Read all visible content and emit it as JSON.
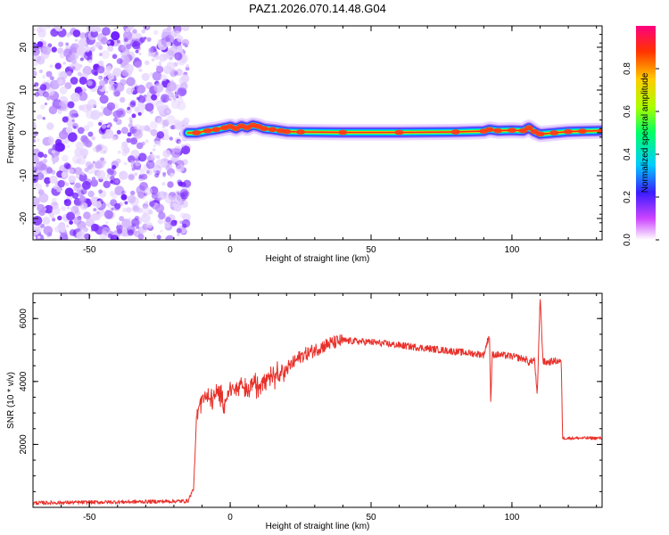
{
  "title": "PAZ1.2026.070.14.48.G04",
  "chart_data": [
    {
      "type": "heatmap",
      "xlabel": "Height of straight line (km)",
      "ylabel": "Frequency (Hz)",
      "xlim": [
        -70,
        132
      ],
      "ylim": [
        -25,
        25
      ],
      "xticks": [
        -50,
        0,
        50,
        100
      ],
      "yticks": [
        -20,
        -10,
        0,
        10,
        20
      ],
      "noise_region_x": [
        -70,
        -15
      ],
      "signal_ridge": {
        "x": [
          -15,
          -12,
          -8,
          -5,
          -2,
          0,
          2,
          4,
          6,
          8,
          10,
          12,
          15,
          18,
          20,
          25,
          40,
          60,
          80,
          90,
          92,
          95,
          100,
          104,
          106,
          108,
          110,
          115,
          120,
          125,
          132
        ],
        "freq": [
          0,
          0,
          0.5,
          0.8,
          1.2,
          1.5,
          1.0,
          1.6,
          1.2,
          1.8,
          1.5,
          1.0,
          0.8,
          0.5,
          0.3,
          0.2,
          0.1,
          0.1,
          0.2,
          0.4,
          0.8,
          0.5,
          0.6,
          0.5,
          1.2,
          0.3,
          -0.3,
          0.0,
          0.3,
          0.4,
          0.5
        ]
      },
      "colorbar": {
        "label": "Normalized spectral amplitude",
        "ticks": [
          "0.0",
          "0.2",
          "0.4",
          "0.6",
          "0.8"
        ],
        "range": [
          0,
          1
        ]
      }
    },
    {
      "type": "line",
      "xlabel": "Height of straight line (km)",
      "ylabel": "SNR (10 * v/v)",
      "xlim": [
        -70,
        132
      ],
      "ylim": [
        0,
        6800
      ],
      "xticks": [
        -50,
        0,
        50,
        100
      ],
      "yticks": [
        2000,
        4000,
        6000
      ],
      "series": [
        {
          "name": "SNR",
          "color": "#e8302a",
          "x": [
            -70,
            -30,
            -15,
            -13,
            -12,
            -11,
            -10,
            -8,
            -6,
            -4,
            -2,
            0,
            2,
            4,
            6,
            8,
            10,
            12,
            15,
            20,
            25,
            30,
            35,
            40,
            50,
            60,
            70,
            80,
            90,
            92,
            92.5,
            93,
            95,
            100,
            105,
            106,
            108,
            109,
            110,
            111,
            112,
            115,
            117.5,
            118,
            120,
            125,
            132
          ],
          "y": [
            140,
            180,
            200,
            600,
            2700,
            3300,
            3600,
            3400,
            3500,
            3600,
            3300,
            3800,
            3700,
            3900,
            3600,
            4000,
            3800,
            4200,
            4200,
            4400,
            4800,
            5000,
            5200,
            5300,
            5250,
            5150,
            5050,
            4950,
            4850,
            5500,
            3300,
            4850,
            4850,
            4800,
            4700,
            4600,
            4700,
            3500,
            6750,
            4650,
            4600,
            4650,
            4650,
            2200,
            2200,
            2200,
            2200
          ]
        }
      ]
    }
  ]
}
